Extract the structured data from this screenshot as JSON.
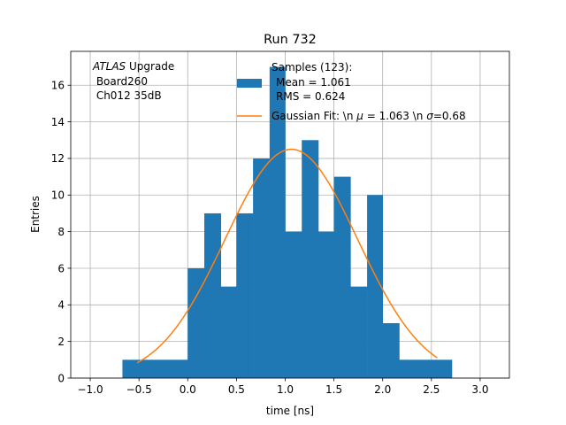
{
  "chart_data": {
    "type": "histogram",
    "title": "Run 732",
    "xlabel": "time [ns]",
    "ylabel": "Entries",
    "xlim": [
      -1.2,
      3.3
    ],
    "ylim": [
      0,
      17.85
    ],
    "xticks": [
      -1.0,
      -0.5,
      0.0,
      0.5,
      1.0,
      1.5,
      2.0,
      2.5,
      3.0
    ],
    "xtick_labels": [
      "−1.0",
      "−0.5",
      "0.0",
      "0.5",
      "1.0",
      "1.5",
      "2.0",
      "2.5",
      "3.0"
    ],
    "yticks": [
      0,
      2,
      4,
      6,
      8,
      10,
      12,
      14,
      16
    ],
    "ytick_labels": [
      "0",
      "2",
      "4",
      "6",
      "8",
      "10",
      "12",
      "14",
      "16"
    ],
    "grid": true,
    "histogram": {
      "bin_edges": [
        -0.67,
        -0.5,
        -0.33,
        -0.17,
        0.0,
        0.17,
        0.34,
        0.5,
        0.67,
        0.84,
        1.0,
        1.17,
        1.34,
        1.5,
        1.67,
        1.84,
        2.0,
        2.17,
        2.34,
        2.5,
        2.71
      ],
      "counts": [
        1,
        1,
        1,
        1,
        6,
        9,
        5,
        9,
        12,
        17,
        8,
        13,
        8,
        11,
        5,
        10,
        3,
        1,
        1,
        1
      ],
      "color": "#1f77b4",
      "legend_lines": [
        "Samples (123):",
        " Mean = 1.061",
        " RMS = 0.624"
      ]
    },
    "fit": {
      "type": "gaussian",
      "mu": 1.063,
      "sigma": 0.68,
      "amplitude": 12.5,
      "x_range": [
        -0.52,
        2.56
      ],
      "color": "#ff7f0e",
      "legend_lines": [
        "Gaussian Fit: \\n $\\mu$ = 1.063 \\n $\\sigma$=0.68"
      ]
    },
    "annotation": {
      "atlas": "ATLAS",
      "rest": " Upgrade",
      "line2": " Board260",
      "line3": " Ch012 35dB"
    },
    "legend_position": "upper-right"
  },
  "legend_display": {
    "samples_header": "Samples (123):",
    "samples_mean": "Mean = 1.061",
    "samples_rms": "RMS = 0.624",
    "fit_prefix": "Gaussian Fit: \\n ",
    "fit_mu_sym": "μ",
    "fit_mid": " = 1.063 \\n ",
    "fit_sigma_sym": "σ",
    "fit_suffix": "=0.68"
  }
}
